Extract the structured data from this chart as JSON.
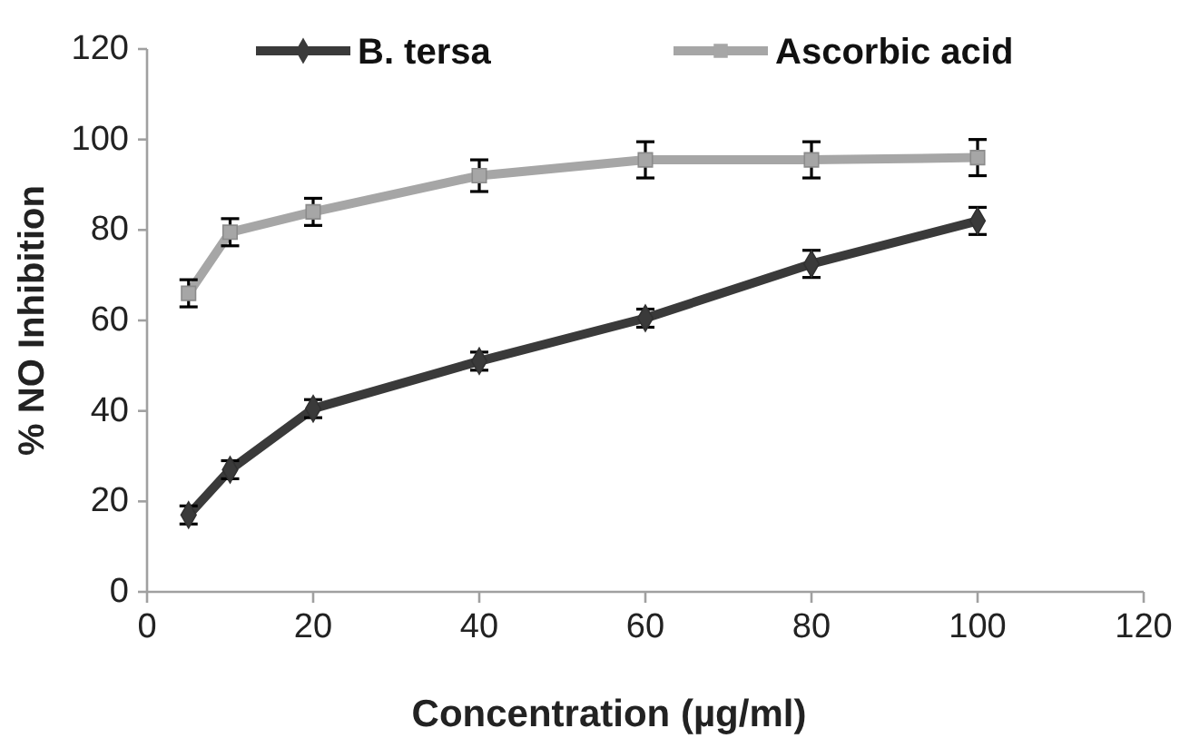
{
  "chart_data": {
    "type": "line",
    "xlabel": "Concentration (µg/ml)",
    "ylabel": "% NO Inhibition",
    "x": [
      5,
      10,
      20,
      40,
      60,
      80,
      100
    ],
    "series": [
      {
        "name": "B. tersa",
        "color": "#3a3a3a",
        "marker": "diamond",
        "values": [
          17,
          27,
          40.5,
          51,
          60.5,
          72.5,
          82
        ],
        "errors": [
          2,
          2,
          2,
          2,
          2,
          3,
          3
        ]
      },
      {
        "name": "Ascorbic acid",
        "color": "#a6a6a6",
        "marker": "square",
        "values": [
          66,
          79.5,
          84,
          92,
          95.5,
          95.5,
          96
        ],
        "errors": [
          3,
          3,
          3,
          3.5,
          4,
          4,
          4
        ]
      }
    ],
    "xlim": [
      0,
      120
    ],
    "xticks": [
      0,
      20,
      40,
      60,
      80,
      100,
      120
    ],
    "ylim": [
      0,
      120
    ],
    "yticks": [
      0,
      20,
      40,
      60,
      80,
      100,
      120
    ],
    "grid": false,
    "legend": "top"
  }
}
